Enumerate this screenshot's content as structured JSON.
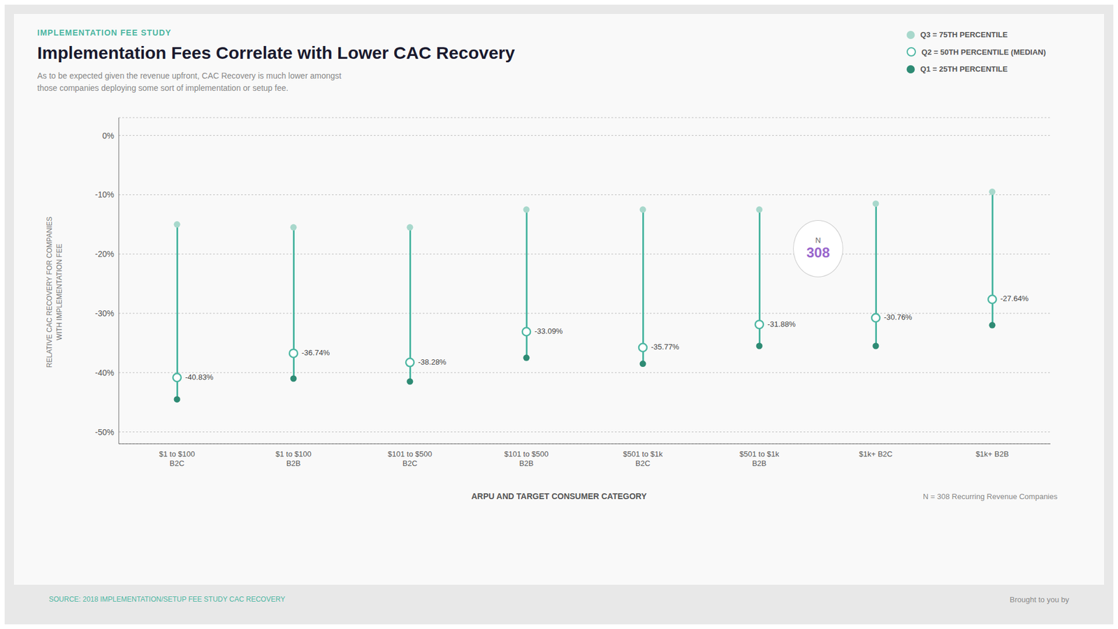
{
  "chart_data": {
    "type": "range",
    "title": "Implementation Fees Correlate with Lower CAC Recovery",
    "kicker": "IMPLEMENTATION FEE STUDY",
    "subtitle": "As to be expected given the revenue upfront, CAC Recovery is much lower amongst\nthose companies deploying some sort of implementation or setup fee.",
    "xlabel": "ARPU AND TARGET CONSUMER CATEGORY",
    "ylabel": "RELATIVE CAC RECOVERY FOR COMPANIES\nWITH IMPLEMENTATION FEE",
    "note": "N = 308 Recurring Revenue Companies",
    "source": "SOURCE: 2018 IMPLEMENTATION/SETUP FEE STUDY CAC RECOVERY",
    "credit": "Brought to you by",
    "categories": [
      "$1 to $100\nB2C",
      "$1 to $100\nB2B",
      "$101 to $500\nB2C",
      "$101 to $500\nB2B",
      "$501 to $1k\nB2C",
      "$501 to $1k\nB2B",
      "$1k+ B2C",
      "$1k+ B2B"
    ],
    "color": "#4DB6A2",
    "series": [
      {
        "name": "Q3 = 75TH PERCENTILE",
        "color": "#A8D8CC",
        "marker": "circle",
        "values": [
          -15.0,
          -15.5,
          -15.5,
          -12.5,
          -12.5,
          -12.5,
          -11.5,
          -9.5
        ]
      },
      {
        "name": "Q2 = 50TH PERCENTILE (MEDIAN)",
        "color": "#4DB6A2",
        "marker": "open",
        "data_labels": true,
        "values": [
          -40.83,
          -36.74,
          -38.28,
          -33.09,
          -35.77,
          -31.88,
          -30.76,
          -27.64
        ],
        "value_labels": [
          "-40.83%",
          "-36.74%",
          "-38.28%",
          "-33.09%",
          "-35.77%",
          "-31.88%",
          "-30.76%",
          "-27.64%"
        ]
      },
      {
        "name": "Q1 = 25TH PERCENTILE",
        "color": "#2E8B74",
        "marker": "circle",
        "values": [
          -44.5,
          -41.0,
          -41.5,
          -37.5,
          -38.5,
          -35.5,
          -35.5,
          -32.0
        ]
      }
    ],
    "ylim": [
      -52,
      3
    ],
    "yticks": [
      {
        "value": 0,
        "label": "0%"
      },
      {
        "value": -10,
        "label": "-10%"
      },
      {
        "value": -20,
        "label": "-20%"
      },
      {
        "value": -30,
        "label": "-30%"
      },
      {
        "value": -40,
        "label": "-40%"
      },
      {
        "value": -50,
        "label": "-50%"
      }
    ],
    "grid": true,
    "legend": "top-right",
    "annotations": [
      {
        "text": "N"
      },
      {
        "text": "308",
        "color": "#9966cc"
      }
    ]
  }
}
